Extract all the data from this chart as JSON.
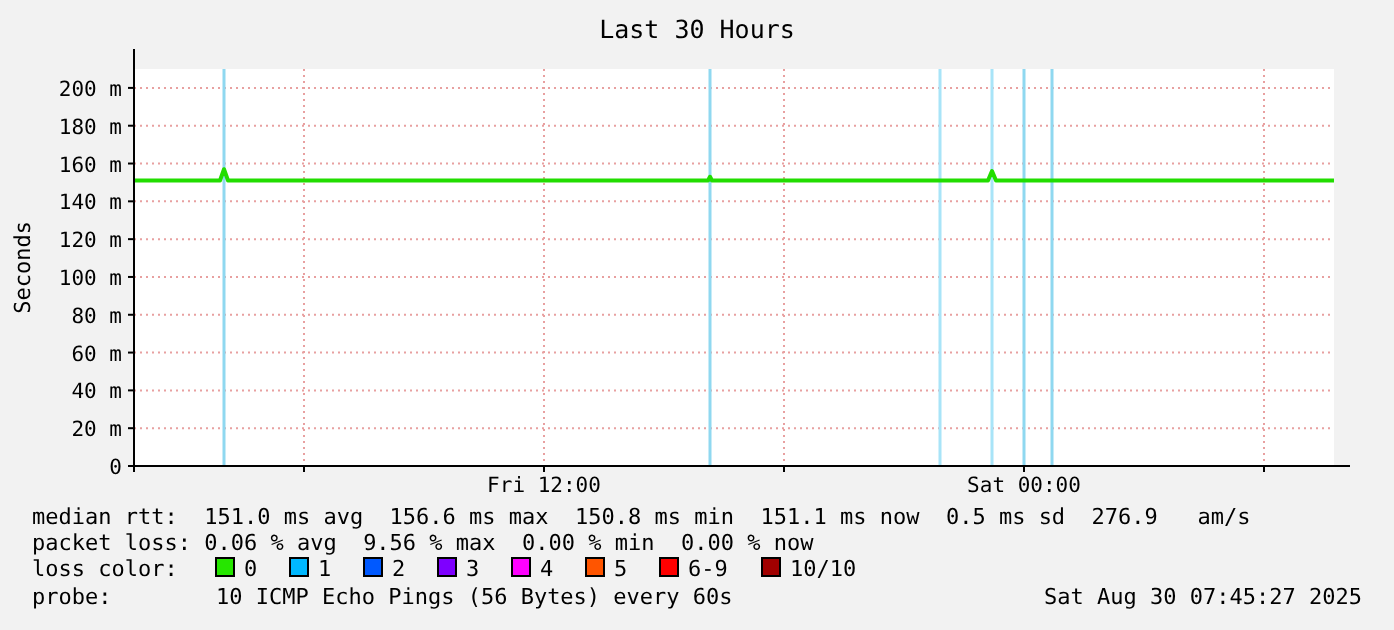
{
  "chart_data": {
    "type": "line",
    "title": "Last 30 Hours",
    "ylabel": "Seconds",
    "xlim": [
      "2025-08-29T01:45",
      "2025-08-30T07:45"
    ],
    "xticks": [
      {
        "value": "2025-08-29T06:00",
        "label": null
      },
      {
        "value": "2025-08-29T12:00",
        "label": "Fri 12:00"
      },
      {
        "value": "2025-08-29T18:00",
        "label": null
      },
      {
        "value": "2025-08-30T00:00",
        "label": "Sat 00:00"
      },
      {
        "value": "2025-08-30T06:00",
        "label": null
      }
    ],
    "ylim": [
      0,
      210
    ],
    "yticks": [
      {
        "value": 0,
        "label": "0"
      },
      {
        "value": 20,
        "label": "20 m"
      },
      {
        "value": 40,
        "label": "40 m"
      },
      {
        "value": 60,
        "label": "60 m"
      },
      {
        "value": 80,
        "label": "80 m"
      },
      {
        "value": 100,
        "label": "100 m"
      },
      {
        "value": 120,
        "label": "120 m"
      },
      {
        "value": 140,
        "label": "140 m"
      },
      {
        "value": 160,
        "label": "160 m"
      },
      {
        "value": 180,
        "label": "180 m"
      },
      {
        "value": 200,
        "label": "200 m"
      }
    ],
    "grid": true,
    "series": [
      {
        "color": "#22dd00",
        "x": [
          "2025-08-29T01:45",
          "2025-08-29T03:54",
          "2025-08-29T04:00",
          "2025-08-29T04:06",
          "2025-08-29T16:06",
          "2025-08-29T16:09",
          "2025-08-29T16:12",
          "2025-08-29T23:06",
          "2025-08-29T23:12",
          "2025-08-29T23:18",
          "2025-08-30T07:45"
        ],
        "values": [
          151,
          151,
          157,
          151,
          151,
          153,
          151,
          151,
          156,
          151,
          151
        ]
      }
    ],
    "ref_lines": [
      {
        "axis": "x",
        "value": "2025-08-29T04:00",
        "label": null,
        "color": "#8fd8f0"
      },
      {
        "axis": "x",
        "value": "2025-08-29T16:09",
        "label": null,
        "color": "#8fd8f0"
      },
      {
        "axis": "x",
        "value": "2025-08-29T21:54",
        "label": null,
        "color": "#a8e4f8"
      },
      {
        "axis": "x",
        "value": "2025-08-29T23:12",
        "label": null,
        "color": "#a8e4f8"
      },
      {
        "axis": "x",
        "value": "2025-08-30T00:00",
        "label": null,
        "color": "#8fd8f0"
      },
      {
        "axis": "x",
        "value": "2025-08-30T00:42",
        "label": null,
        "color": "#8fd8f0"
      }
    ],
    "annotations": [
      "median rtt:  151.0 ms avg  156.6 ms max  150.8 ms min  151.1 ms now  0.5 ms sd  276.9   am/s",
      "packet loss: 0.06 % avg  9.56 % max  0.00 % min  0.00 % now",
      "loss color:",
      "0",
      "1",
      "2",
      "3",
      "4",
      "5",
      "6-9",
      "10/10",
      "probe:",
      "10 ICMP Echo Pings (56 Bytes) every 60s",
      "Sat Aug 30 07:45:27 2025"
    ]
  }
}
